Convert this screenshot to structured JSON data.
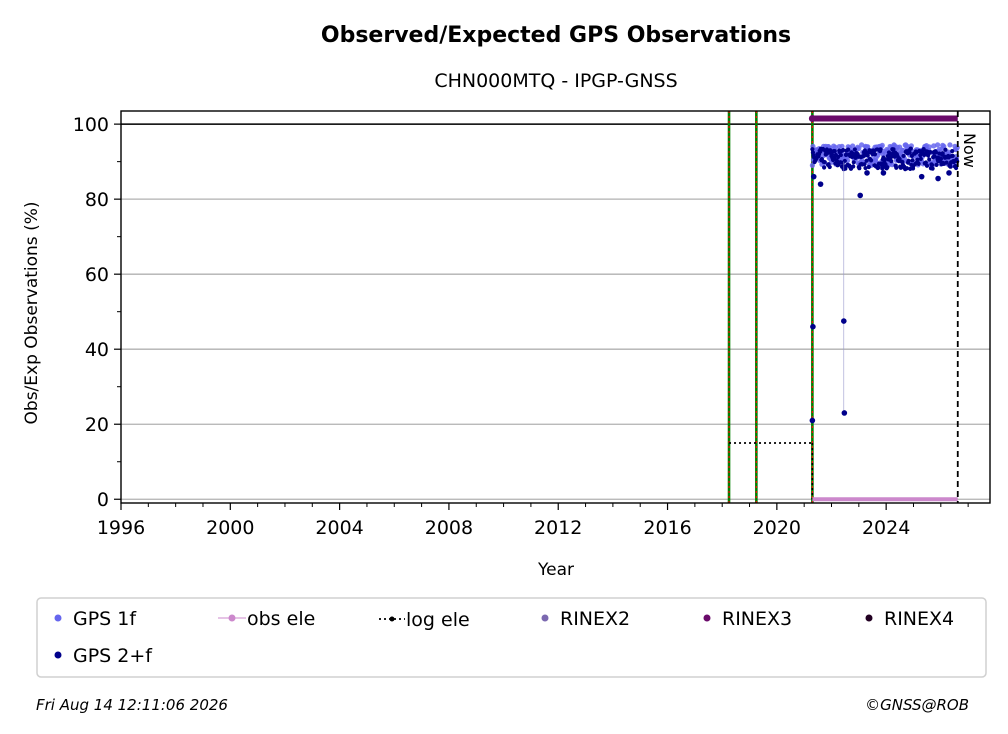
{
  "chart_data": {
    "type": "scatter",
    "title": "Observed/Expected GPS Observations",
    "subtitle": "CHN000MTQ - IPGP-GNSS",
    "xlabel": "Year",
    "ylabel": "Obs/Exp Observations (%)",
    "xlim": [
      1996.0,
      2027.8
    ],
    "ylim": [
      -1,
      103.5
    ],
    "x_ticks": [
      1996,
      2000,
      2004,
      2008,
      2012,
      2016,
      2020,
      2024
    ],
    "y_ticks": [
      0,
      20,
      40,
      60,
      80,
      100
    ],
    "grid": "horizontal",
    "reference_line": 100,
    "now": {
      "x": 2026.62,
      "label": "Now"
    },
    "equipment_changes": [
      2018.25,
      2019.25,
      2021.3
    ],
    "log_ele": {
      "y": 15,
      "segments": [
        [
          2018.25,
          2021.3
        ]
      ],
      "drop_x": 2021.3
    },
    "obs_ele": {
      "y": 0,
      "x": [
        2021.3,
        2026.62
      ]
    },
    "rinex3": {
      "y": 101.5,
      "x": [
        2021.3,
        2026.62
      ]
    },
    "series": [
      {
        "name": "GPS 1f",
        "color": "#6666ee",
        "band": {
          "x": [
            2021.3,
            2026.6
          ],
          "y_low": 89,
          "y_high": 94.5
        }
      },
      {
        "name": "GPS 2+f",
        "color": "#00008b",
        "points": [
          {
            "x": 2021.3,
            "y": 21
          },
          {
            "x": 2021.32,
            "y": 46
          },
          {
            "x": 2021.35,
            "y": 86
          },
          {
            "x": 2021.6,
            "y": 84
          },
          {
            "x": 2022.45,
            "y": 47.5
          },
          {
            "x": 2022.47,
            "y": 23
          },
          {
            "x": 2023.05,
            "y": 81
          },
          {
            "x": 2023.3,
            "y": 87
          },
          {
            "x": 2023.9,
            "y": 87
          },
          {
            "x": 2025.3,
            "y": 86
          },
          {
            "x": 2025.9,
            "y": 85.5
          },
          {
            "x": 2026.3,
            "y": 87
          }
        ],
        "band": {
          "x": [
            2021.3,
            2026.6
          ],
          "y_low": 88,
          "y_high": 93.5
        }
      }
    ],
    "legend": {
      "placement": "bottom",
      "entries": [
        "GPS 1f",
        "obs ele",
        "log ele",
        "RINEX2",
        "RINEX3",
        "RINEX4",
        "GPS 2+f"
      ]
    },
    "colors": {
      "gps1f": "#6666ee",
      "gps2f": "#00008b",
      "obs_ele": "#cc88cc",
      "rinex2": "#7b68b0",
      "rinex3": "#6a0a6a",
      "rinex4": "#220022",
      "change_green": "#008000",
      "change_red": "#ff0000",
      "grid": "#b0b0b0"
    }
  },
  "footer": {
    "timestamp": "Fri Aug 14 12:11:06 2026",
    "credit": "©GNSS@ROB"
  }
}
